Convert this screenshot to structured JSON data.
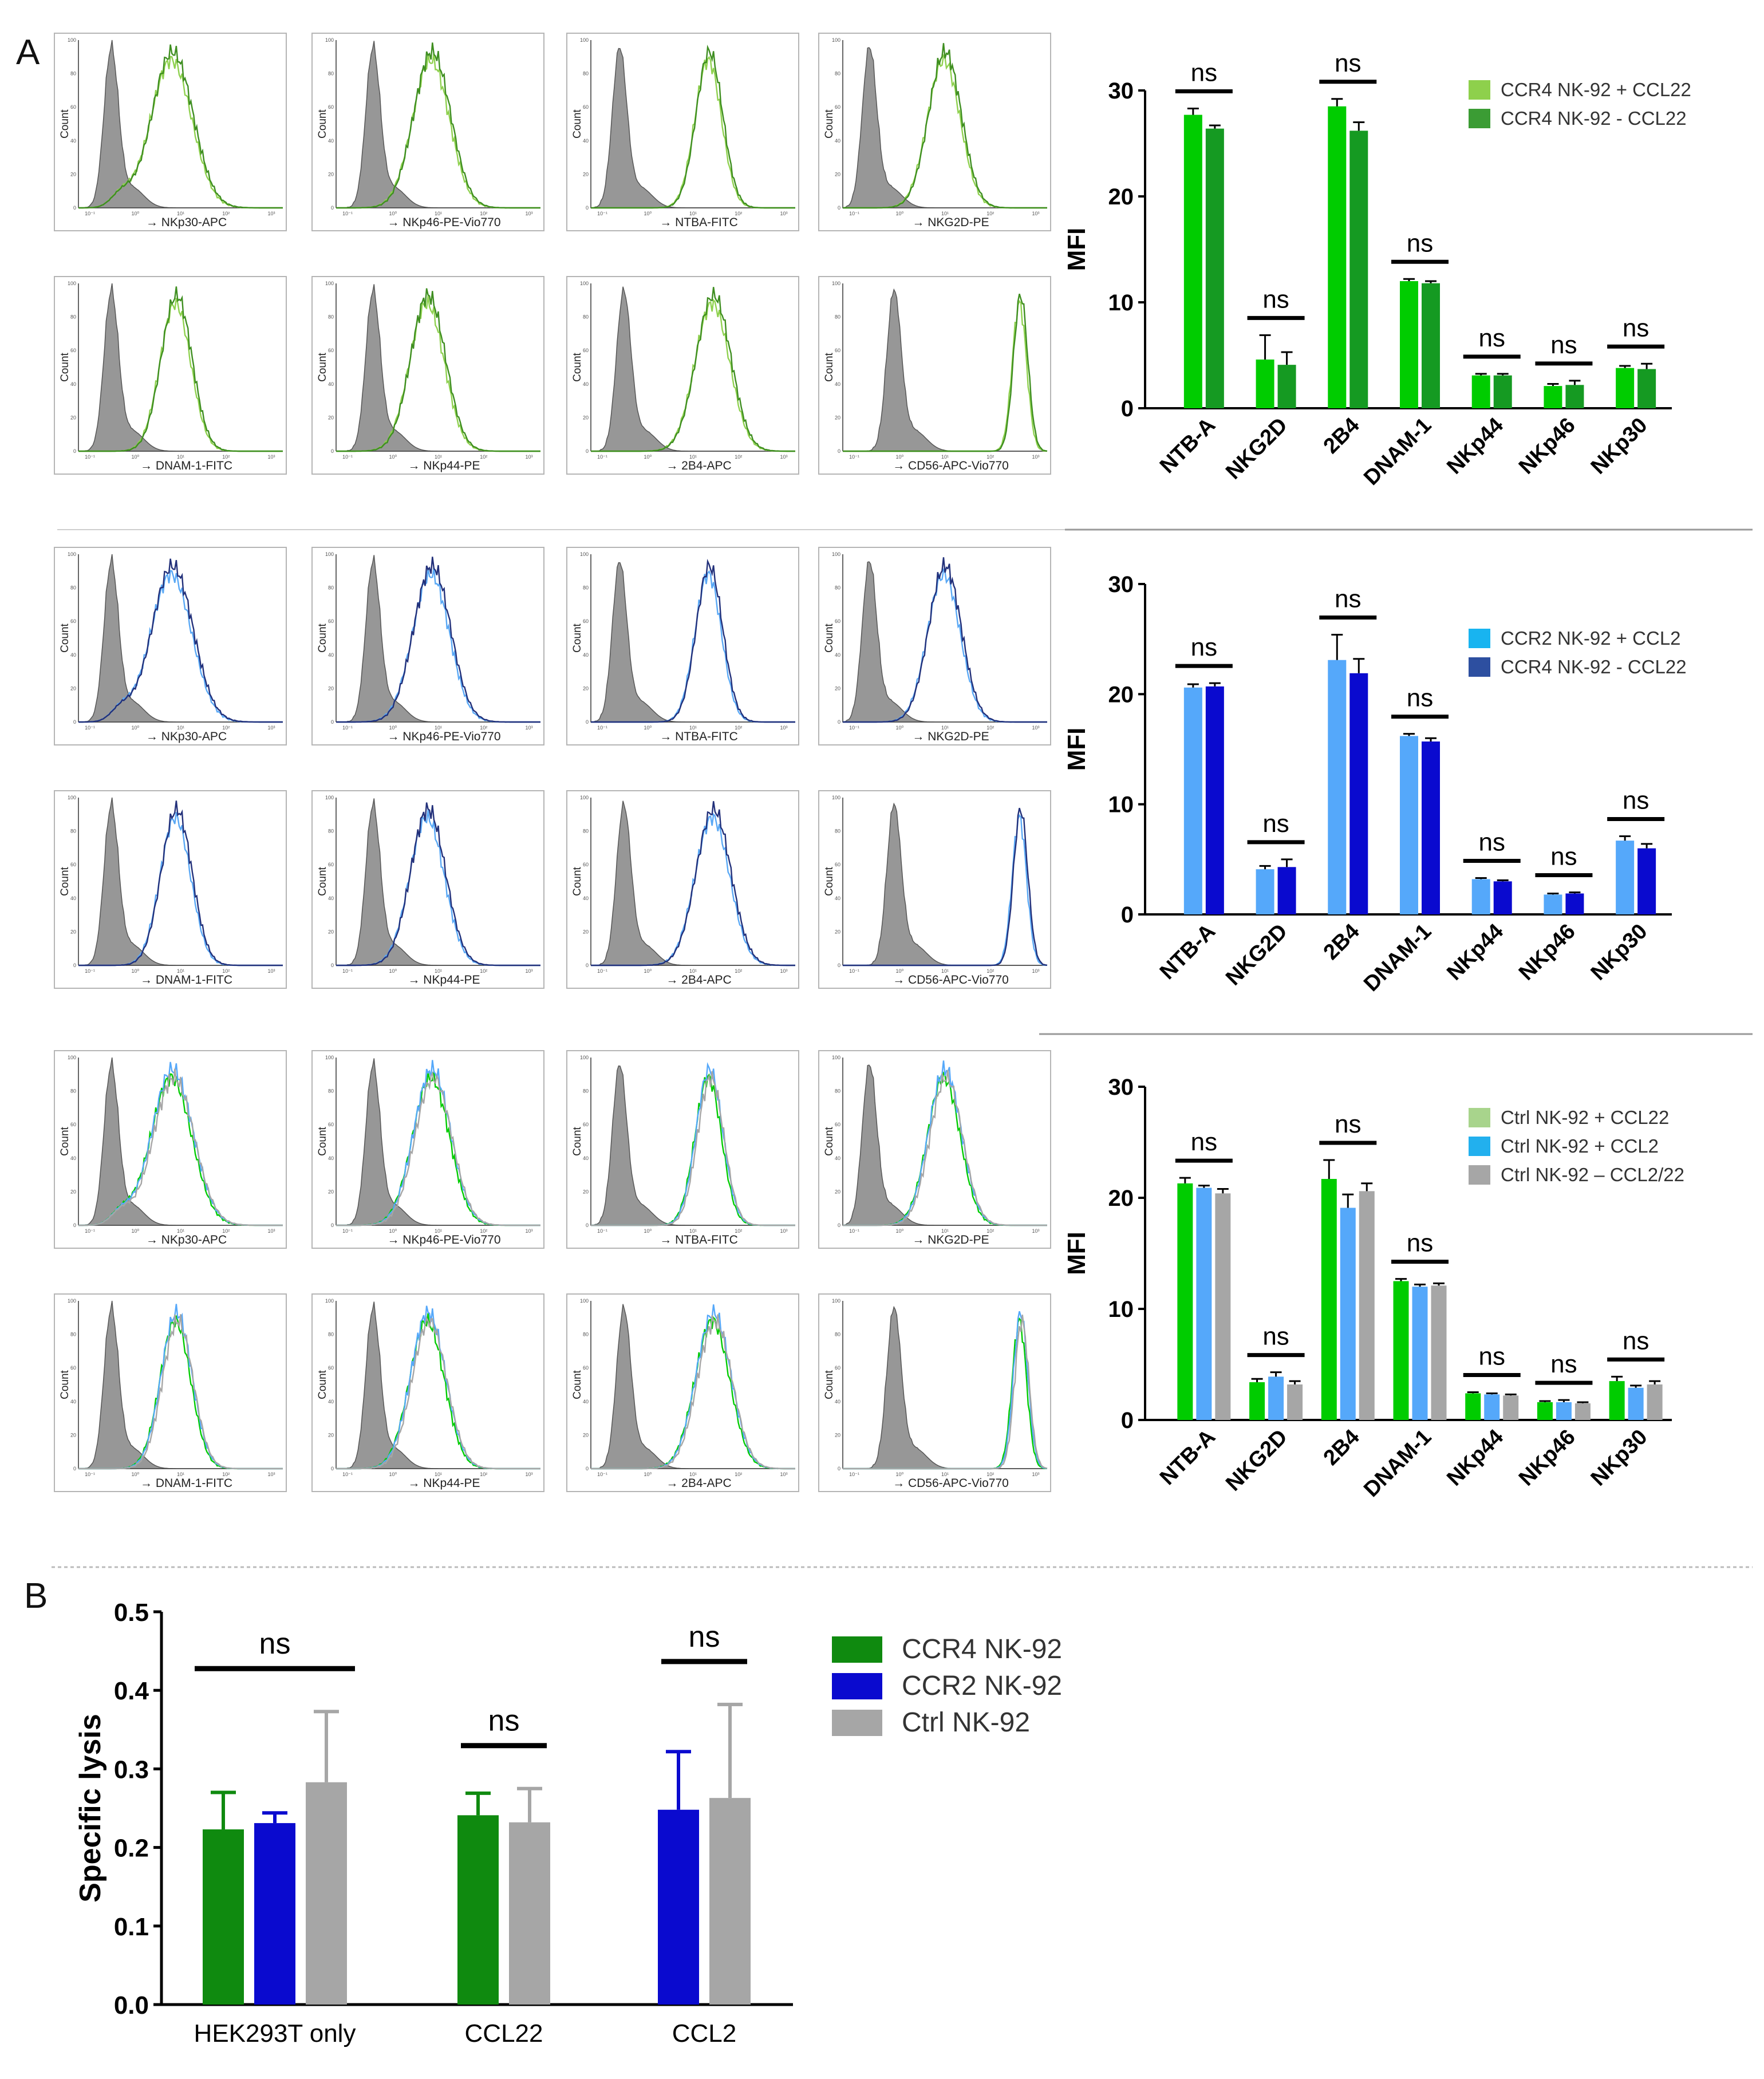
{
  "panel_labels": [
    "A",
    "B"
  ],
  "colors": {
    "ccr4_plus": "#00CC00",
    "ccr4_minus": "#159A22",
    "ccr2_plus": "#55A8FA",
    "ccr2_minus": "#0A0ACF",
    "ctrl_ccl22": "#00CC00",
    "ctrl_ccl2": "#55A8FA",
    "ctrl_none": "#A6A6A6",
    "hist_ccr4_a": "#8FD14F",
    "hist_ccr4_b": "#3E8E20",
    "hist_ccr2_a": "#59A8F5",
    "hist_ccr2_b": "#22307A",
    "hist_iso": "#8C8C8C",
    "legend_ccr4_plus": "#8ED04C",
    "legend_ccr4_minus": "#3B9C34",
    "legend_ccr2_plus": "#18B4F0",
    "legend_ccr2_minus": "#2D4FA0",
    "legend_ctrl_ccl22": "#A8D48C",
    "legend_ctrl_ccl2": "#22B0EE",
    "legend_ctrl_none": "#A6A6A6",
    "b_ccr4": "#0F8A0F",
    "b_ccr2": "#0A0ACF",
    "b_ctrl": "#A6A6A6"
  },
  "histograms": {
    "y_axis_label": "Count",
    "y_ticks": [
      "100",
      "80",
      "60",
      "40",
      "20",
      "0"
    ],
    "rows": [
      [
        "NKp30-APC",
        "NKp46-PE-Vio770",
        "NTBA-FITC",
        "NKG2D-PE"
      ],
      [
        "DNAM-1-FITC",
        "NKp44-PE",
        "2B4-APC",
        "CD56-APC-Vio770"
      ]
    ]
  },
  "chart_data": [
    {
      "type": "bar",
      "panel": "A",
      "ylabel": "MFI",
      "ylim": [
        0,
        30
      ],
      "yticks": [
        0,
        10,
        20,
        30
      ],
      "categories": [
        "NTB-A",
        "NKG2D",
        "2B4",
        "DNAM-1",
        "NKp44",
        "NKp46",
        "NKp30"
      ],
      "significance": [
        "ns",
        "ns",
        "ns",
        "ns",
        "ns",
        "ns",
        "ns"
      ],
      "series": [
        {
          "name": "CCR4 NK-92 + CCL22",
          "values": [
            27.7,
            4.6,
            28.5,
            12.0,
            3.1,
            2.1,
            3.8
          ],
          "errors": [
            0.6,
            2.3,
            0.7,
            0.2,
            0.15,
            0.2,
            0.2
          ]
        },
        {
          "name": "CCR4 NK-92 - CCL22",
          "values": [
            26.4,
            4.1,
            26.2,
            11.8,
            3.1,
            2.2,
            3.7
          ],
          "errors": [
            0.3,
            1.2,
            0.8,
            0.2,
            0.15,
            0.4,
            0.5
          ]
        }
      ]
    },
    {
      "type": "bar",
      "panel": "A",
      "ylabel": "MFI",
      "ylim": [
        0,
        30
      ],
      "yticks": [
        0,
        10,
        20,
        30
      ],
      "categories": [
        "NTB-A",
        "NKG2D",
        "2B4",
        "DNAM-1",
        "NKp44",
        "NKp46",
        "NKp30"
      ],
      "significance": [
        "ns",
        "ns",
        "ns",
        "ns",
        "ns",
        "ns",
        "ns"
      ],
      "series": [
        {
          "name": "CCR2 NK-92 + CCL2",
          "values": [
            20.6,
            4.1,
            23.1,
            16.2,
            3.2,
            1.8,
            6.7
          ],
          "errors": [
            0.3,
            0.3,
            2.3,
            0.2,
            0.1,
            0.1,
            0.4
          ]
        },
        {
          "name": "CCR4 NK-92 - CCL22",
          "values": [
            20.7,
            4.3,
            21.9,
            15.7,
            3.0,
            1.9,
            6.0
          ],
          "errors": [
            0.3,
            0.7,
            1.3,
            0.3,
            0.1,
            0.1,
            0.4
          ]
        }
      ]
    },
    {
      "type": "bar",
      "panel": "A",
      "ylabel": "MFI",
      "ylim": [
        0,
        30
      ],
      "yticks": [
        0,
        10,
        20,
        30
      ],
      "categories": [
        "NTB-A",
        "NKG2D",
        "2B4",
        "DNAM-1",
        "NKp44",
        "NKp46",
        "NKp30"
      ],
      "significance": [
        "ns",
        "ns",
        "ns",
        "ns",
        "ns",
        "ns",
        "ns"
      ],
      "series": [
        {
          "name": "Ctrl NK-92 + CCL22",
          "values": [
            21.3,
            3.4,
            21.7,
            12.5,
            2.4,
            1.6,
            3.5
          ],
          "errors": [
            0.5,
            0.3,
            1.7,
            0.2,
            0.1,
            0.1,
            0.4
          ]
        },
        {
          "name": "Ctrl NK-92 + CCL2",
          "values": [
            20.9,
            3.9,
            19.1,
            12.0,
            2.3,
            1.6,
            2.9
          ],
          "errors": [
            0.2,
            0.4,
            1.2,
            0.2,
            0.1,
            0.2,
            0.2
          ]
        },
        {
          "name": "Ctrl NK-92 – CCL2/22",
          "values": [
            20.4,
            3.2,
            20.6,
            12.1,
            2.2,
            1.5,
            3.2
          ],
          "errors": [
            0.4,
            0.3,
            0.7,
            0.2,
            0.1,
            0.1,
            0.3
          ]
        }
      ]
    },
    {
      "type": "bar",
      "panel": "B",
      "ylabel": "Specific lysis",
      "ylim": [
        0,
        0.5
      ],
      "yticks": [
        "0.0",
        "0.1",
        "0.2",
        "0.3",
        "0.4",
        "0.5"
      ],
      "categories": [
        "HEK293T only",
        "CCL22",
        "CCL2"
      ],
      "significance": [
        "ns",
        "ns",
        "ns"
      ],
      "series": [
        {
          "name": "CCR4 NK-92",
          "values": [
            0.223,
            0.241,
            null
          ],
          "errors": [
            0.047,
            0.028,
            null
          ]
        },
        {
          "name": "CCR2 NK-92",
          "values": [
            0.231,
            null,
            0.248
          ],
          "errors": [
            0.013,
            null,
            0.074
          ]
        },
        {
          "name": "Ctrl NK-92",
          "values": [
            0.283,
            0.232,
            0.263
          ],
          "errors": [
            0.09,
            0.043,
            0.119
          ]
        }
      ]
    }
  ]
}
